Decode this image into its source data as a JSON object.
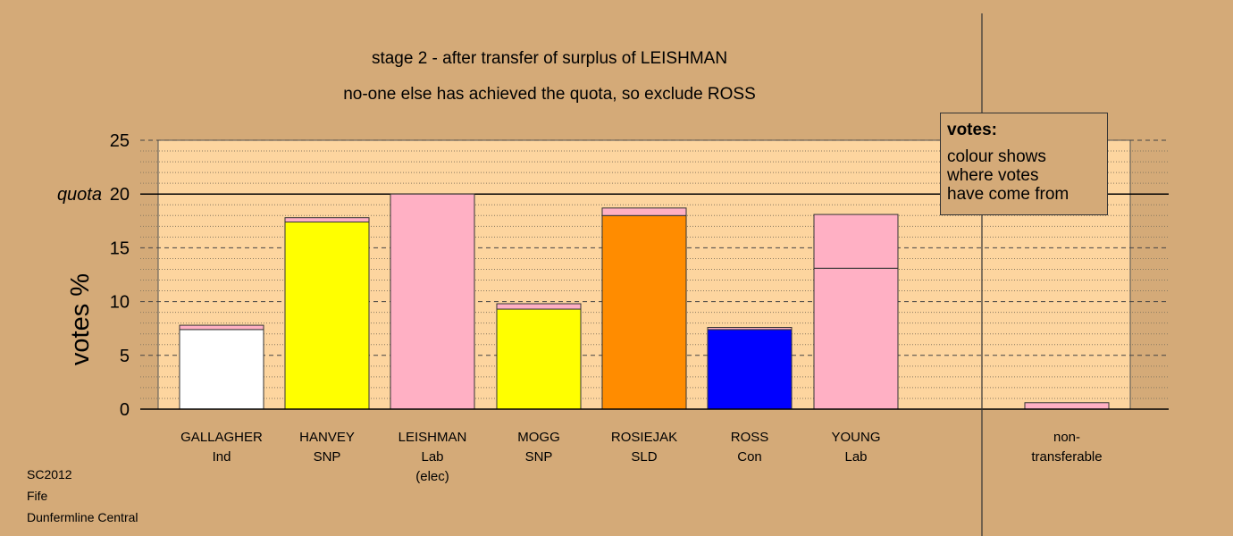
{
  "titles": {
    "line1": "stage 2 - after transfer of surplus of LEISHMAN",
    "line2": "no-one else has achieved the quota, so exclude ROSS"
  },
  "legend": {
    "title": "votes:",
    "lines": [
      "colour shows",
      "where votes",
      "have come from"
    ]
  },
  "footer": [
    "SC2012",
    "Fife",
    "Dunfermline Central"
  ],
  "colors": {
    "background": "#d4aa78",
    "plot_area": "#fdd59f",
    "Ind": "#ffffff",
    "SNP": "#ffff00",
    "Lab": "#ffb0c4",
    "SLD": "#ff8c00",
    "Con": "#0000ff"
  },
  "chart_data": {
    "type": "bar",
    "stacked": true,
    "ylabel": "votes %",
    "ylim": [
      0,
      25
    ],
    "yticks": [
      0,
      5,
      10,
      15,
      20,
      25
    ],
    "quota": {
      "value": 20,
      "label": "quota"
    },
    "categories": [
      {
        "lines": [
          "GALLAGHER",
          "Ind"
        ],
        "segments": [
          {
            "value": 7.4,
            "color": "#ffffff"
          },
          {
            "value": 0.4,
            "color": "#ffb0c4"
          }
        ]
      },
      {
        "lines": [
          "HANVEY",
          "SNP"
        ],
        "segments": [
          {
            "value": 17.4,
            "color": "#ffff00"
          },
          {
            "value": 0.4,
            "color": "#ffb0c4"
          }
        ]
      },
      {
        "lines": [
          "LEISHMAN",
          "Lab",
          "(elec)"
        ],
        "segments": [
          {
            "value": 20.0,
            "color": "#ffb0c4"
          }
        ]
      },
      {
        "lines": [
          "MOGG",
          "SNP"
        ],
        "segments": [
          {
            "value": 9.3,
            "color": "#ffff00"
          },
          {
            "value": 0.5,
            "color": "#ffb0c4"
          }
        ]
      },
      {
        "lines": [
          "ROSIEJAK",
          "SLD"
        ],
        "segments": [
          {
            "value": 18.0,
            "color": "#ff8c00"
          },
          {
            "value": 0.7,
            "color": "#ffb0c4"
          }
        ]
      },
      {
        "lines": [
          "ROSS",
          "Con"
        ],
        "segments": [
          {
            "value": 7.4,
            "color": "#0000ff"
          },
          {
            "value": 0.2,
            "color": "#ffb0c4"
          }
        ]
      },
      {
        "lines": [
          "YOUNG",
          "Lab"
        ],
        "segments": [
          {
            "value": 13.1,
            "color": "#ffb0c4"
          },
          {
            "value": 5.0,
            "color": "#ffb0c4"
          }
        ]
      },
      {
        "lines": [
          "non-",
          "transferable"
        ],
        "segments": [
          {
            "value": 0.6,
            "color": "#ffb0c4"
          }
        ]
      }
    ]
  }
}
